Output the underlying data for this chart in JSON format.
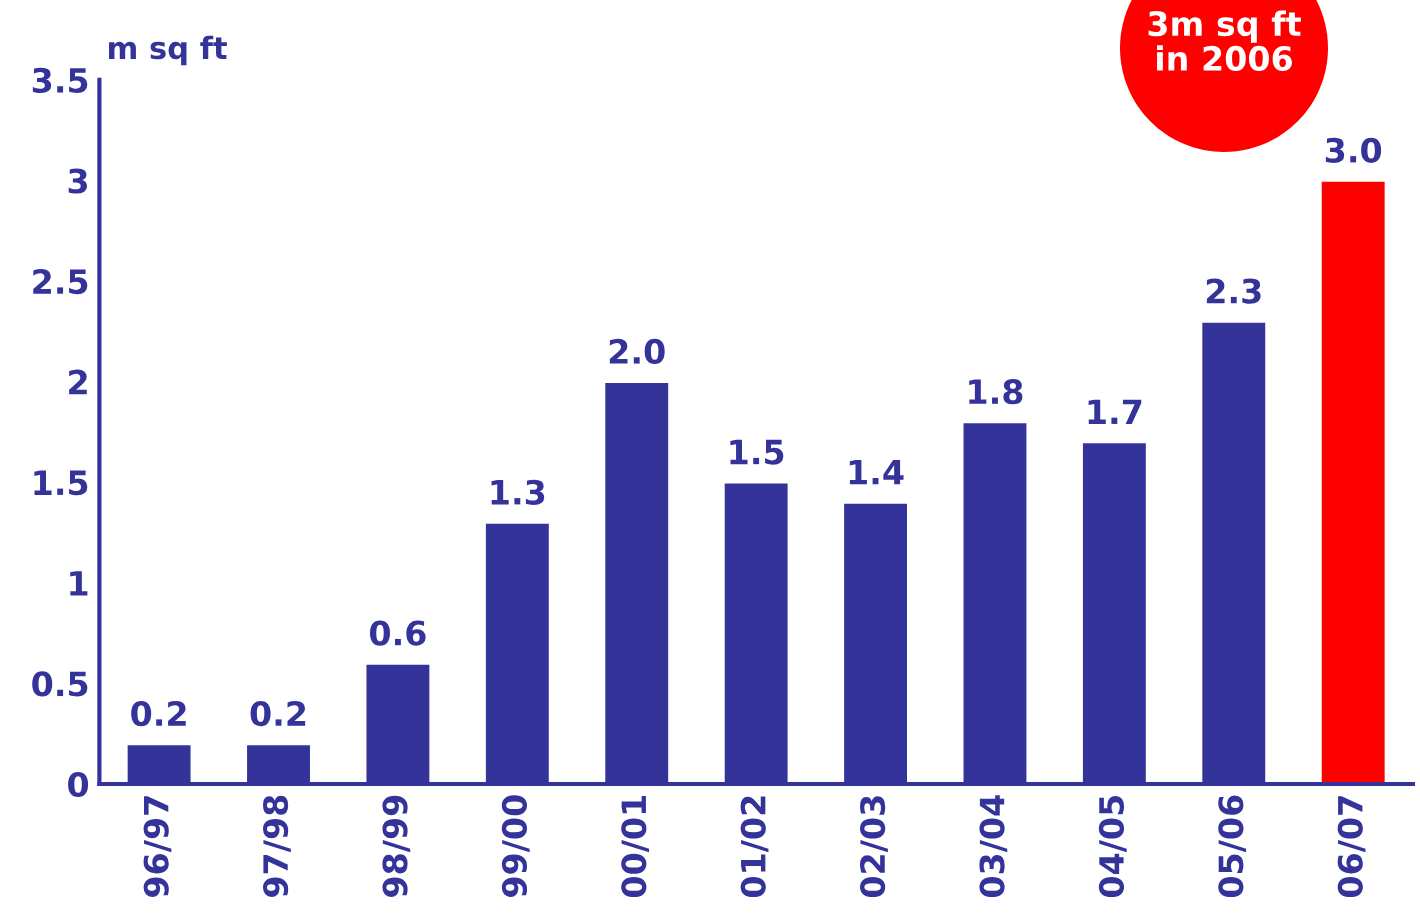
{
  "chart_data": {
    "type": "bar",
    "ylabel": "m sq ft",
    "categories": [
      "96/97",
      "97/98",
      "98/99",
      "99/00",
      "00/01",
      "01/02",
      "02/03",
      "03/04",
      "04/05",
      "05/06",
      "06/07"
    ],
    "values": [
      0.2,
      0.2,
      0.6,
      1.3,
      2.0,
      1.5,
      1.4,
      1.8,
      1.7,
      2.3,
      3.0
    ],
    "colors": [
      "#333399",
      "#333399",
      "#333399",
      "#333399",
      "#333399",
      "#333399",
      "#333399",
      "#333399",
      "#333399",
      "#333399",
      "#ff0000"
    ],
    "value_labels": [
      "0.2",
      "0.2",
      "0.6",
      "1.3",
      "2.0",
      "1.5",
      "1.4",
      "1.8",
      "1.7",
      "2.3",
      "3.0"
    ],
    "ylim": [
      0,
      3.5
    ],
    "yticks": [
      0,
      {
        "value": 0.5,
        "label": "0.5"
      },
      1,
      {
        "value": 1.5,
        "label": "1.5"
      },
      2,
      {
        "value": 2.5,
        "label": "2.5"
      },
      3,
      {
        "value": 3.5,
        "label": "3.5"
      }
    ],
    "annotations": [
      "3m sq ft\nin 2006"
    ],
    "grid": false,
    "legend": false
  }
}
